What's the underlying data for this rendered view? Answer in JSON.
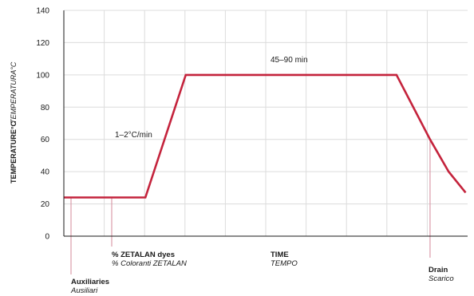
{
  "chart_data": {
    "type": "line",
    "ylabel": "TEMPERATURE°C",
    "ylabel_secondary": "TEMPERATURA°C",
    "xlabel": "TIME",
    "xlabel_secondary": "TEMPO",
    "ylim": [
      0,
      140
    ],
    "yticks": [
      "0",
      "20",
      "40",
      "60",
      "80",
      "100",
      "120",
      "140"
    ],
    "grid": true,
    "series": [
      {
        "color": "#c4233c",
        "x": [
          0,
          20.2,
          30.2,
          82.4,
          90.7,
          95.3,
          99.5
        ],
        "values": [
          24,
          24,
          100,
          100,
          60,
          40,
          27
        ]
      }
    ],
    "annotations": {
      "rate": "1–2°C/min",
      "hold": "45–90 min",
      "auxiliaries": "Auxiliaries",
      "auxiliaries_it": "Ausiliari",
      "dyes": "% ZETALAN dyes",
      "dyes_it": "% Coloranti ZETALAN",
      "drain": "Drain",
      "drain_it": "Scarico"
    },
    "colors": {
      "line": "#c4233c",
      "marker": "#d4889a",
      "grid": "#dcdcdc",
      "axis": "#1a1a1a"
    }
  }
}
